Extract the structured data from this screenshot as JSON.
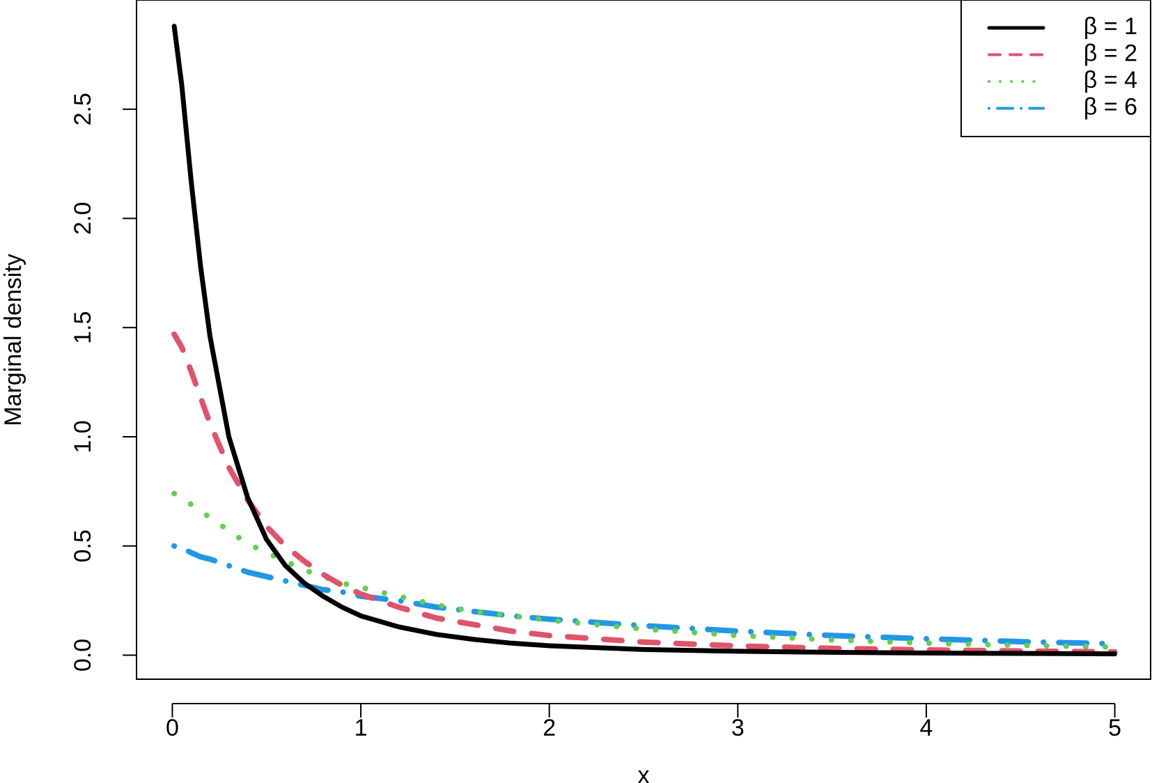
{
  "chart_data": {
    "type": "line",
    "title": "",
    "xlabel": "x",
    "ylabel": "Marginal density",
    "xlim": [
      -0.19,
      5.19
    ],
    "ylim": [
      -0.11,
      3.0
    ],
    "xticks": [
      0,
      1,
      2,
      3,
      4,
      5
    ],
    "xtick_labels": [
      "0",
      "1",
      "2",
      "3",
      "4",
      "5"
    ],
    "yticks": [
      0.0,
      0.5,
      1.0,
      1.5,
      2.0,
      2.5
    ],
    "ytick_labels": [
      "0.0",
      "0.5",
      "1.0",
      "1.5",
      "2.0",
      "2.5"
    ],
    "grid": false,
    "legend_position": "top-right",
    "x": [
      0.01,
      0.05,
      0.1,
      0.15,
      0.2,
      0.3,
      0.4,
      0.5,
      0.6,
      0.7,
      0.8,
      0.9,
      1.0,
      1.2,
      1.4,
      1.6,
      1.8,
      2.0,
      2.5,
      3.0,
      3.5,
      4.0,
      4.5,
      5.0
    ],
    "series": [
      {
        "name": "β = 1",
        "color": "#000000",
        "dash": "solid",
        "values": [
          2.88,
          2.61,
          2.17,
          1.78,
          1.46,
          1.0,
          0.72,
          0.53,
          0.41,
          0.33,
          0.27,
          0.22,
          0.18,
          0.13,
          0.095,
          0.072,
          0.055,
          0.043,
          0.026,
          0.018,
          0.013,
          0.01,
          0.008,
          0.006
        ]
      },
      {
        "name": "β = 2",
        "color": "#df536b",
        "dash": "dashed",
        "values": [
          1.47,
          1.41,
          1.3,
          1.18,
          1.06,
          0.86,
          0.71,
          0.59,
          0.5,
          0.43,
          0.37,
          0.32,
          0.28,
          0.22,
          0.17,
          0.14,
          0.11,
          0.09,
          0.06,
          0.042,
          0.031,
          0.024,
          0.019,
          0.015
        ]
      },
      {
        "name": "β = 4",
        "color": "#61d04f",
        "dash": "dotted",
        "values": [
          0.74,
          0.72,
          0.69,
          0.66,
          0.63,
          0.57,
          0.51,
          0.47,
          0.43,
          0.39,
          0.36,
          0.33,
          0.31,
          0.27,
          0.23,
          0.2,
          0.18,
          0.16,
          0.12,
          0.09,
          0.07,
          0.055,
          0.045,
          0.037
        ]
      },
      {
        "name": "β = 6",
        "color": "#2297e6",
        "dash": "dotdash",
        "values": [
          0.5,
          0.49,
          0.47,
          0.45,
          0.44,
          0.41,
          0.38,
          0.36,
          0.34,
          0.32,
          0.3,
          0.29,
          0.27,
          0.25,
          0.22,
          0.2,
          0.18,
          0.165,
          0.135,
          0.11,
          0.09,
          0.075,
          0.062,
          0.052
        ]
      }
    ]
  }
}
